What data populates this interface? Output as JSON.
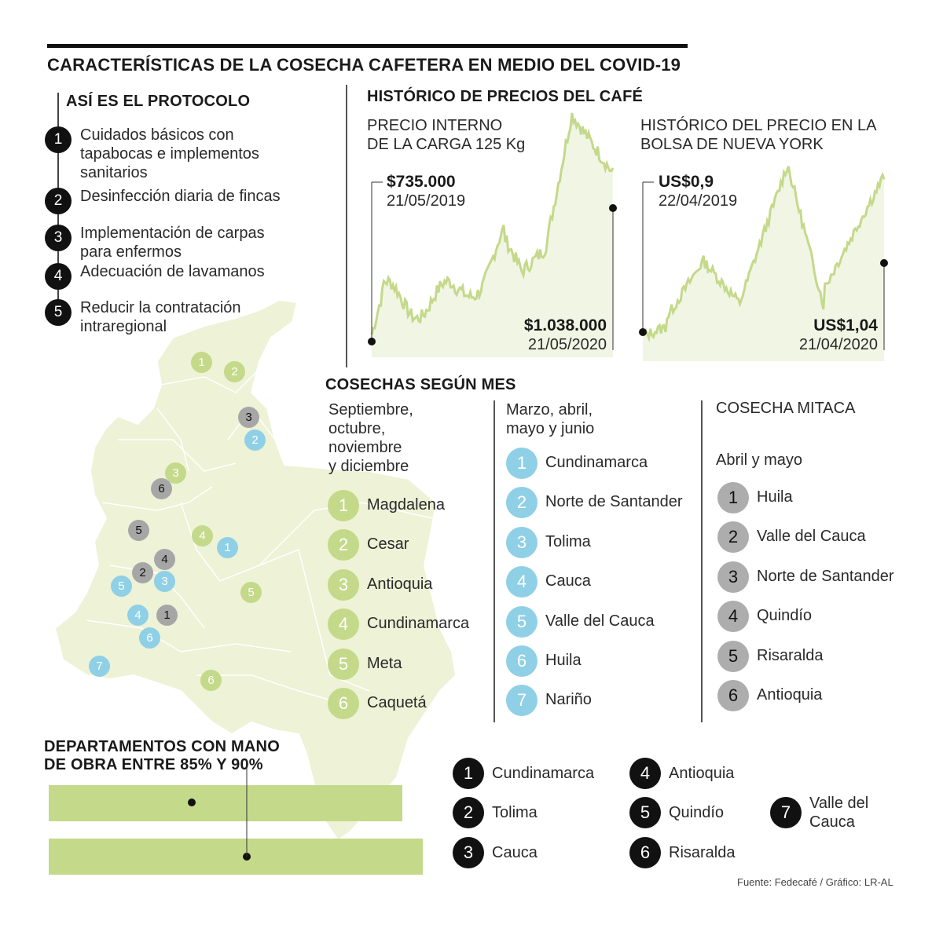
{
  "title": "CARACTERÍSTICAS DE LA COSECHA CAFETERA EN MEDIO DEL COVID-19",
  "protocol": {
    "heading": "ASÍ ES EL PROTOCOLO",
    "steps": [
      {
        "num": "1",
        "lines": [
          "Cuidados básicos con",
          "tapabocas e implementos",
          "sanitarios"
        ]
      },
      {
        "num": "2",
        "lines": [
          "Desinfección diaria de fincas"
        ]
      },
      {
        "num": "3",
        "lines": [
          "Implementación de carpas",
          "para enfermos"
        ]
      },
      {
        "num": "4",
        "lines": [
          "Adecuación de lavamanos"
        ]
      },
      {
        "num": "5",
        "lines": [
          "Reducir la contratación",
          "intraregional"
        ]
      }
    ]
  },
  "prices": {
    "heading": "HISTÓRICO DE PRECIOS DEL CAFÉ",
    "internal": {
      "label_line1": "PRECIO INTERNO",
      "label_line2": "DE LA CARGA 125 Kg",
      "start_value": "$735.000",
      "start_date": "21/05/2019",
      "end_value": "$1.038.000",
      "end_date": "21/05/2020"
    },
    "ny": {
      "label_line1": "HISTÓRICO DEL PRECIO EN LA",
      "label_line2": "BOLSA DE NUEVA YORK",
      "start_value": "US$0,9",
      "start_date": "22/04/2019",
      "end_value": "US$1,04",
      "end_date": "21/04/2020"
    },
    "line_color": "#c4d98a",
    "fill_color": "#f1f5e4"
  },
  "harvest": {
    "heading": "COSECHAS SEGÚN MES",
    "col1": {
      "period": [
        "Septiembre,",
        "octubre,",
        "noviembre",
        "y diciembre"
      ],
      "items": [
        "Magdalena",
        "Cesar",
        "Antioquia",
        "Cundinamarca",
        "Meta",
        "Caquetá"
      ],
      "color": "#c4d98a"
    },
    "col2": {
      "period": [
        "Marzo, abril,",
        "mayo y junio"
      ],
      "items": [
        "Cundinamarca",
        "Norte de Santander",
        "Tolima",
        "Cauca",
        "Valle del Cauca",
        "Huila",
        "Nariño"
      ],
      "color": "#8fd0e6"
    },
    "col3": {
      "heading": "COSECHA MITACA",
      "period": "Abril y mayo",
      "items": [
        "Huila",
        "Valle del Cauca",
        "Norte de Santander",
        "Quindío",
        "Risaralda",
        "Antioquia"
      ],
      "color": "#aeadae"
    }
  },
  "labor": {
    "heading_line1": "DEPARTAMENTOS CON MANO",
    "heading_line2": "DE OBRA ENTRE 85% Y 90%",
    "items": [
      {
        "num": "1",
        "name": [
          "Cundinamarca"
        ]
      },
      {
        "num": "2",
        "name": [
          "Tolima"
        ]
      },
      {
        "num": "3",
        "name": [
          "Cauca"
        ]
      },
      {
        "num": "4",
        "name": [
          "Antioquia"
        ]
      },
      {
        "num": "5",
        "name": [
          "Quindío"
        ]
      },
      {
        "num": "6",
        "name": [
          "Risaralda"
        ]
      },
      {
        "num": "7",
        "name": [
          "Valle del",
          "Cauca"
        ]
      }
    ]
  },
  "map_markers": {
    "green": [
      "1",
      "2",
      "3",
      "4",
      "5",
      "6"
    ],
    "blue": [
      "1",
      "2",
      "3",
      "4",
      "5",
      "6",
      "7"
    ],
    "gray": [
      "1",
      "2",
      "3",
      "4",
      "5",
      "6"
    ]
  },
  "source": "Fuente: Fedecafé / Gráfico: LR-AL",
  "colors": {
    "map_fill": "#eef2d6",
    "map_stroke": "#ffffff",
    "bar": "#c4d98a"
  }
}
